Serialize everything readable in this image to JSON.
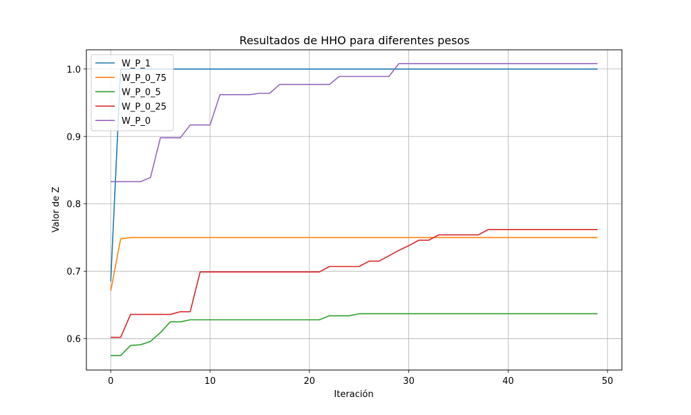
{
  "chart_data": {
    "type": "line",
    "title": "Resultados de HHO para diferentes pesos",
    "xlabel": "Iteración",
    "ylabel": "Valor de Z",
    "xlim": [
      -2.45,
      51.45
    ],
    "ylim": [
      0.5535,
      1.0285
    ],
    "xticks": [
      0,
      10,
      20,
      30,
      40,
      50
    ],
    "yticks": [
      0.6,
      0.7,
      0.8,
      0.9,
      1.0
    ],
    "xtick_labels": [
      "0",
      "10",
      "20",
      "30",
      "40",
      "50"
    ],
    "ytick_labels": [
      "0.6",
      "0.7",
      "0.8",
      "0.9",
      "1.0"
    ],
    "grid": true,
    "legend_position": "upper-left",
    "x": [
      0,
      1,
      2,
      3,
      4,
      5,
      6,
      7,
      8,
      9,
      10,
      11,
      12,
      13,
      14,
      15,
      16,
      17,
      18,
      19,
      20,
      21,
      22,
      23,
      24,
      25,
      26,
      27,
      28,
      29,
      30,
      31,
      32,
      33,
      34,
      35,
      36,
      37,
      38,
      39,
      40,
      41,
      42,
      43,
      44,
      45,
      46,
      47,
      48,
      49
    ],
    "series": [
      {
        "name": "W_P_1",
        "color": "#1f77b4",
        "values": [
          0.685,
          1.0,
          1.0,
          1.0,
          1.0,
          1.0,
          1.0,
          1.0,
          1.0,
          1.0,
          1.0,
          1.0,
          1.0,
          1.0,
          1.0,
          1.0,
          1.0,
          1.0,
          1.0,
          1.0,
          1.0,
          1.0,
          1.0,
          1.0,
          1.0,
          1.0,
          1.0,
          1.0,
          1.0,
          1.0,
          1.0,
          1.0,
          1.0,
          1.0,
          1.0,
          1.0,
          1.0,
          1.0,
          1.0,
          1.0,
          1.0,
          1.0,
          1.0,
          1.0,
          1.0,
          1.0,
          1.0,
          1.0,
          1.0,
          1.0
        ]
      },
      {
        "name": "W_P_0_75",
        "color": "#ff7f0e",
        "values": [
          0.671,
          0.748,
          0.75,
          0.75,
          0.75,
          0.75,
          0.75,
          0.75,
          0.75,
          0.75,
          0.75,
          0.75,
          0.75,
          0.75,
          0.75,
          0.75,
          0.75,
          0.75,
          0.75,
          0.75,
          0.75,
          0.75,
          0.75,
          0.75,
          0.75,
          0.75,
          0.75,
          0.75,
          0.75,
          0.75,
          0.75,
          0.75,
          0.75,
          0.75,
          0.75,
          0.75,
          0.75,
          0.75,
          0.75,
          0.75,
          0.75,
          0.75,
          0.75,
          0.75,
          0.75,
          0.75,
          0.75,
          0.75,
          0.75,
          0.75
        ]
      },
      {
        "name": "W_P_0_5",
        "color": "#2ca02c",
        "values": [
          0.575,
          0.575,
          0.59,
          0.591,
          0.596,
          0.609,
          0.625,
          0.625,
          0.628,
          0.628,
          0.628,
          0.628,
          0.628,
          0.628,
          0.628,
          0.628,
          0.628,
          0.628,
          0.628,
          0.628,
          0.628,
          0.628,
          0.634,
          0.634,
          0.634,
          0.637,
          0.637,
          0.637,
          0.637,
          0.637,
          0.637,
          0.637,
          0.637,
          0.637,
          0.637,
          0.637,
          0.637,
          0.637,
          0.637,
          0.637,
          0.637,
          0.637,
          0.637,
          0.637,
          0.637,
          0.637,
          0.637,
          0.637,
          0.637,
          0.637
        ]
      },
      {
        "name": "W_P_0_25",
        "color": "#d62728",
        "values": [
          0.602,
          0.602,
          0.636,
          0.636,
          0.636,
          0.636,
          0.636,
          0.64,
          0.64,
          0.699,
          0.699,
          0.699,
          0.699,
          0.699,
          0.699,
          0.699,
          0.699,
          0.699,
          0.699,
          0.699,
          0.699,
          0.699,
          0.707,
          0.707,
          0.707,
          0.707,
          0.715,
          0.715,
          0.723,
          0.731,
          0.738,
          0.746,
          0.746,
          0.754,
          0.754,
          0.754,
          0.754,
          0.754,
          0.762,
          0.762,
          0.762,
          0.762,
          0.762,
          0.762,
          0.762,
          0.762,
          0.762,
          0.762,
          0.762,
          0.762
        ]
      },
      {
        "name": "W_P_0",
        "color": "#9467bd",
        "values": [
          0.833,
          0.833,
          0.833,
          0.833,
          0.839,
          0.898,
          0.898,
          0.898,
          0.917,
          0.917,
          0.917,
          0.962,
          0.962,
          0.962,
          0.962,
          0.964,
          0.964,
          0.977,
          0.977,
          0.977,
          0.977,
          0.977,
          0.977,
          0.989,
          0.989,
          0.989,
          0.989,
          0.989,
          0.989,
          1.008,
          1.008,
          1.008,
          1.008,
          1.008,
          1.008,
          1.008,
          1.008,
          1.008,
          1.008,
          1.008,
          1.008,
          1.008,
          1.008,
          1.008,
          1.008,
          1.008,
          1.008,
          1.008,
          1.008,
          1.008
        ]
      }
    ]
  }
}
